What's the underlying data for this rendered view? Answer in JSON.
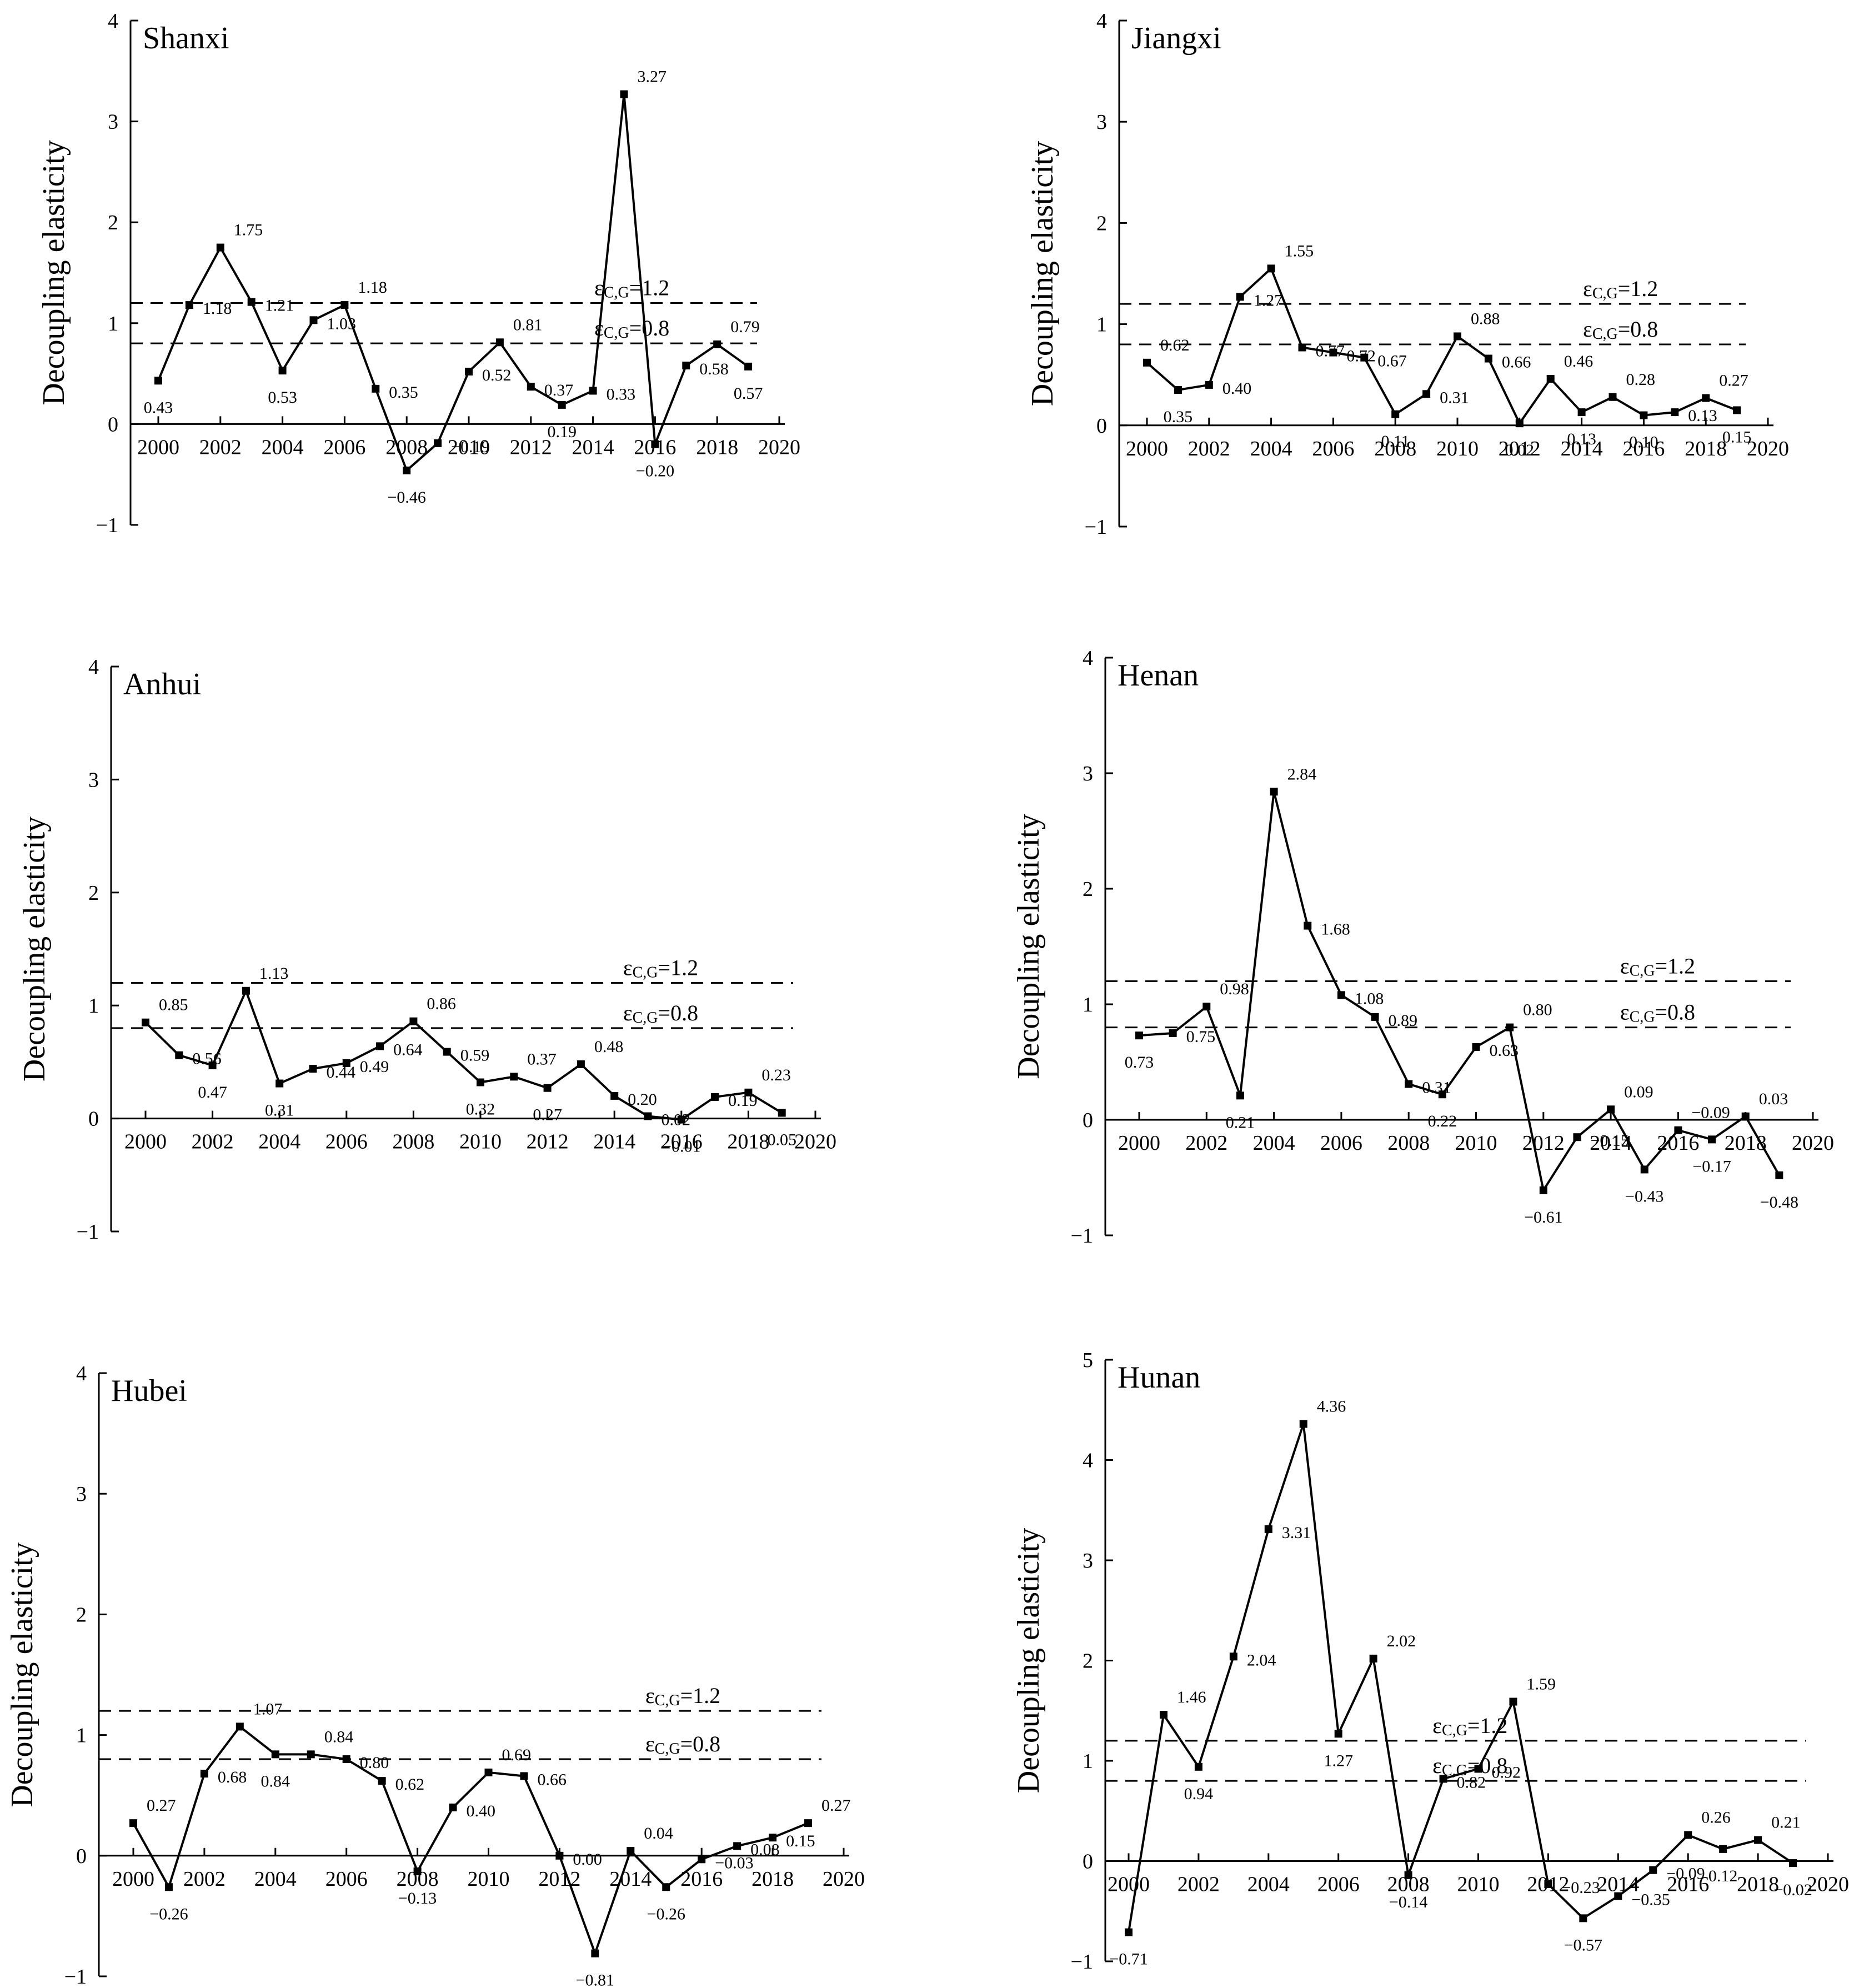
{
  "y_axis_label": "Decoupling elasticity",
  "threshold_labels": {
    "upper": {
      "symbol": "ε",
      "subscript": "C,G",
      "value_text": "=1.2"
    },
    "lower": {
      "symbol": "ε",
      "subscript": "C,G",
      "value_text": "=0.8"
    }
  },
  "chart_data": [
    {
      "type": "line",
      "title": "Shanxi",
      "ylabel": "Decoupling elasticity",
      "xlabel": "",
      "xlim": [
        1999,
        2020
      ],
      "ylim": [
        -1,
        4
      ],
      "xticks": [
        2000,
        2002,
        2004,
        2006,
        2008,
        2010,
        2012,
        2014,
        2016,
        2018,
        2020
      ],
      "yticks": [
        -1,
        0,
        1,
        2,
        3,
        4
      ],
      "thresholds": [
        1.2,
        0.8
      ],
      "x": [
        2000,
        2001,
        2002,
        2003,
        2004,
        2005,
        2006,
        2007,
        2008,
        2009,
        2010,
        2011,
        2012,
        2013,
        2014,
        2015,
        2016,
        2017,
        2018,
        2019
      ],
      "values": [
        0.43,
        1.18,
        1.75,
        1.21,
        0.53,
        1.03,
        1.18,
        0.35,
        -0.46,
        -0.19,
        0.52,
        0.81,
        0.37,
        0.19,
        0.33,
        3.27,
        -0.2,
        0.58,
        0.79,
        0.57
      ],
      "labels": [
        "0.43",
        "1.18",
        "1.75",
        "1.21",
        "0.53",
        "1.03",
        "1.18",
        "0.35",
        "−0.46",
        "−0.19",
        "0.52",
        "0.81",
        "0.37",
        "0.19",
        "0.33",
        "3.27",
        "−0.20",
        "0.58",
        "0.79",
        "0.57"
      ]
    },
    {
      "type": "line",
      "title": "Jiangxi",
      "ylabel": "Decoupling elasticity",
      "xlabel": "",
      "xlim": [
        1999,
        2020
      ],
      "ylim": [
        -1,
        4
      ],
      "xticks": [
        2000,
        2002,
        2004,
        2006,
        2008,
        2010,
        2012,
        2014,
        2016,
        2018,
        2020
      ],
      "yticks": [
        -1,
        0,
        1,
        2,
        3,
        4
      ],
      "thresholds": [
        1.2,
        0.8
      ],
      "x": [
        2000,
        2001,
        2002,
        2003,
        2004,
        2005,
        2006,
        2007,
        2008,
        2009,
        2010,
        2011,
        2012,
        2013,
        2014,
        2015,
        2016,
        2017,
        2018,
        2019
      ],
      "values": [
        0.62,
        0.35,
        0.4,
        1.27,
        1.55,
        0.77,
        0.72,
        0.67,
        0.11,
        0.31,
        0.88,
        0.66,
        0.02,
        0.46,
        0.13,
        0.28,
        0.1,
        0.13,
        0.27,
        0.15
      ],
      "labels": [
        "0.62",
        "0.35",
        "0.40",
        "1.27",
        "1.55",
        "0.77",
        "0.72",
        "0.67",
        "0.11",
        "0.31",
        "0.88",
        "0.66",
        "0.02",
        "0.46",
        "0.13",
        "0.28",
        "0.10",
        "0.13",
        "0.27",
        "0.15"
      ]
    },
    {
      "type": "line",
      "title": "Anhui",
      "ylabel": "Decoupling elasticity",
      "xlabel": "",
      "xlim": [
        1999,
        2020
      ],
      "ylim": [
        -1,
        4
      ],
      "xticks": [
        2000,
        2002,
        2004,
        2006,
        2008,
        2010,
        2012,
        2014,
        2016,
        2018,
        2020
      ],
      "yticks": [
        -1,
        0,
        1,
        2,
        3,
        4
      ],
      "thresholds": [
        1.2,
        0.8
      ],
      "x": [
        2000,
        2001,
        2002,
        2003,
        2004,
        2005,
        2006,
        2007,
        2008,
        2009,
        2010,
        2011,
        2012,
        2013,
        2014,
        2015,
        2016,
        2017,
        2018,
        2019
      ],
      "values": [
        0.85,
        0.56,
        0.47,
        1.13,
        0.31,
        0.44,
        0.49,
        0.64,
        0.86,
        0.59,
        0.32,
        0.37,
        0.27,
        0.48,
        0.2,
        0.02,
        -0.01,
        0.19,
        0.23,
        0.05
      ],
      "labels": [
        "0.85",
        "0.56",
        "0.47",
        "1.13",
        "0.31",
        "0.44",
        "0.49",
        "0.64",
        "0.86",
        "0.59",
        "0.32",
        "0.37",
        "0.27",
        "0.48",
        "0.20",
        "0.02",
        "−0.01",
        "0.19",
        "0.23",
        "0.05"
      ]
    },
    {
      "type": "line",
      "title": "Henan",
      "ylabel": "Decoupling elasticity",
      "xlabel": "",
      "xlim": [
        1999,
        2020
      ],
      "ylim": [
        -1,
        4
      ],
      "xticks": [
        2000,
        2002,
        2004,
        2006,
        2008,
        2010,
        2012,
        2014,
        2016,
        2018,
        2020
      ],
      "yticks": [
        -1,
        0,
        1,
        2,
        3,
        4
      ],
      "thresholds": [
        1.2,
        0.8
      ],
      "x": [
        2000,
        2001,
        2002,
        2003,
        2004,
        2005,
        2006,
        2007,
        2008,
        2009,
        2010,
        2011,
        2012,
        2013,
        2014,
        2015,
        2016,
        2017,
        2018,
        2019
      ],
      "values": [
        0.73,
        0.75,
        0.98,
        0.21,
        2.84,
        1.68,
        1.08,
        0.89,
        0.31,
        0.22,
        0.63,
        0.8,
        -0.61,
        -0.15,
        0.09,
        -0.43,
        -0.09,
        -0.17,
        0.03,
        -0.48
      ],
      "labels": [
        "0.73",
        "0.75",
        "0.98",
        "0.21",
        "2.84",
        "1.68",
        "1.08",
        "0.89",
        "0.31",
        "0.22",
        "0.63",
        "0.80",
        "−0.61",
        "−0.15",
        "0.09",
        "−0.43",
        "−0.09",
        "−0.17",
        "0.03",
        "−0.48"
      ]
    },
    {
      "type": "line",
      "title": "Hubei",
      "ylabel": "Decoupling elasticity",
      "xlabel": "",
      "xlim": [
        1999,
        2020
      ],
      "ylim": [
        -1,
        4
      ],
      "xticks": [
        2000,
        2002,
        2004,
        2006,
        2008,
        2010,
        2012,
        2014,
        2016,
        2018,
        2020
      ],
      "yticks": [
        -1,
        0,
        1,
        2,
        3,
        4
      ],
      "thresholds": [
        1.2,
        0.8
      ],
      "x": [
        2000,
        2001,
        2002,
        2003,
        2004,
        2005,
        2006,
        2007,
        2008,
        2009,
        2010,
        2011,
        2012,
        2013,
        2014,
        2015,
        2016,
        2017,
        2018,
        2019
      ],
      "values": [
        0.27,
        -0.26,
        0.68,
        1.07,
        0.84,
        0.84,
        0.8,
        0.62,
        -0.13,
        0.4,
        0.69,
        0.66,
        0.0,
        -0.81,
        0.04,
        -0.26,
        -0.03,
        0.08,
        0.15,
        0.27
      ],
      "labels": [
        "0.27",
        "−0.26",
        "0.68",
        "1.07",
        "0.84",
        "0.84",
        "0.80",
        "0.62",
        "−0.13",
        "0.40",
        "0.69",
        "0.66",
        "0.00",
        "−0.81",
        "0.04",
        "−0.26",
        "−0.03",
        "0.08",
        "0.15",
        "0.27"
      ]
    },
    {
      "type": "line",
      "title": "Hunan",
      "ylabel": "Decoupling elasticity",
      "xlabel": "",
      "xlim": [
        1999,
        2020
      ],
      "ylim": [
        -1,
        5
      ],
      "xticks": [
        2000,
        2002,
        2004,
        2006,
        2008,
        2010,
        2012,
        2014,
        2016,
        2018,
        2020
      ],
      "yticks": [
        -1,
        0,
        1,
        2,
        3,
        4,
        5
      ],
      "thresholds": [
        1.2,
        0.8
      ],
      "x": [
        2000,
        2001,
        2002,
        2003,
        2004,
        2005,
        2006,
        2007,
        2008,
        2009,
        2010,
        2011,
        2012,
        2013,
        2014,
        2015,
        2016,
        2017,
        2018,
        2019
      ],
      "values": [
        -0.71,
        1.46,
        0.94,
        2.04,
        3.31,
        4.36,
        1.27,
        2.02,
        -0.14,
        0.82,
        0.92,
        1.59,
        -0.23,
        -0.57,
        -0.35,
        -0.09,
        0.26,
        0.12,
        0.21,
        -0.02
      ],
      "labels": [
        "−0.71",
        "1.46",
        "0.94",
        "2.04",
        "3.31",
        "4.36",
        "1.27",
        "2.02",
        "−0.14",
        "0.82",
        "0.92",
        "1.59",
        "−0.23",
        "−0.57",
        "−0.35",
        "−0.09",
        "0.26",
        "0.12",
        "0.21",
        "−0.02"
      ]
    }
  ]
}
